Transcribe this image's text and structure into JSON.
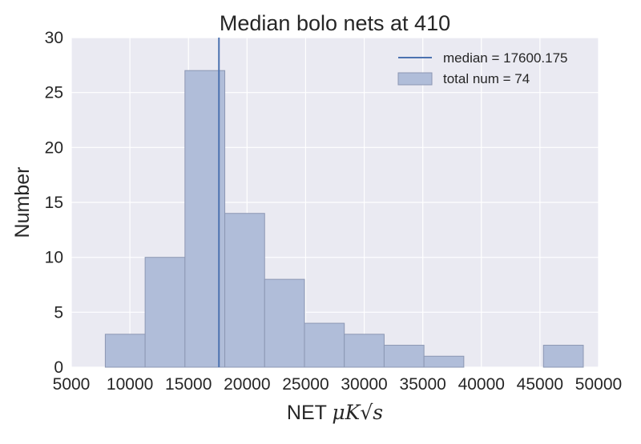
{
  "chart_data": {
    "type": "bar",
    "title": "Median bolo nets at 410",
    "xlabel": "NET",
    "xlabel_math": "μK√s",
    "ylabel": "Number",
    "xlim": [
      5000,
      50000
    ],
    "ylim": [
      0,
      30
    ],
    "x_ticks": [
      5000,
      10000,
      15000,
      20000,
      25000,
      30000,
      35000,
      40000,
      45000,
      50000
    ],
    "y_ticks": [
      0,
      5,
      10,
      15,
      20,
      25,
      30
    ],
    "grid": true,
    "legend_position": "top-right",
    "bins": [
      {
        "x0": 7900,
        "x1": 11300,
        "count": 3
      },
      {
        "x0": 11300,
        "x1": 14700,
        "count": 10
      },
      {
        "x0": 14700,
        "x1": 18100,
        "count": 27
      },
      {
        "x0": 18100,
        "x1": 21500,
        "count": 14
      },
      {
        "x0": 21500,
        "x1": 24900,
        "count": 8
      },
      {
        "x0": 24900,
        "x1": 28300,
        "count": 4
      },
      {
        "x0": 28300,
        "x1": 31700,
        "count": 3
      },
      {
        "x0": 31700,
        "x1": 35100,
        "count": 2
      },
      {
        "x0": 35100,
        "x1": 38500,
        "count": 1
      },
      {
        "x0": 38500,
        "x1": 41900,
        "count": 0
      },
      {
        "x0": 41900,
        "x1": 45300,
        "count": 0
      },
      {
        "x0": 45300,
        "x1": 48700,
        "count": 2
      }
    ],
    "median": 17600.175,
    "legend": [
      {
        "type": "line",
        "label": "median = 17600.175"
      },
      {
        "type": "patch",
        "label": "total num = 74"
      }
    ],
    "colors": {
      "bar_fill": "#b0bdd9",
      "bar_stroke": "#8c97b3",
      "median_line": "#4c72b0",
      "plot_bg": "#eaeaf2",
      "grid": "#ffffff"
    }
  }
}
